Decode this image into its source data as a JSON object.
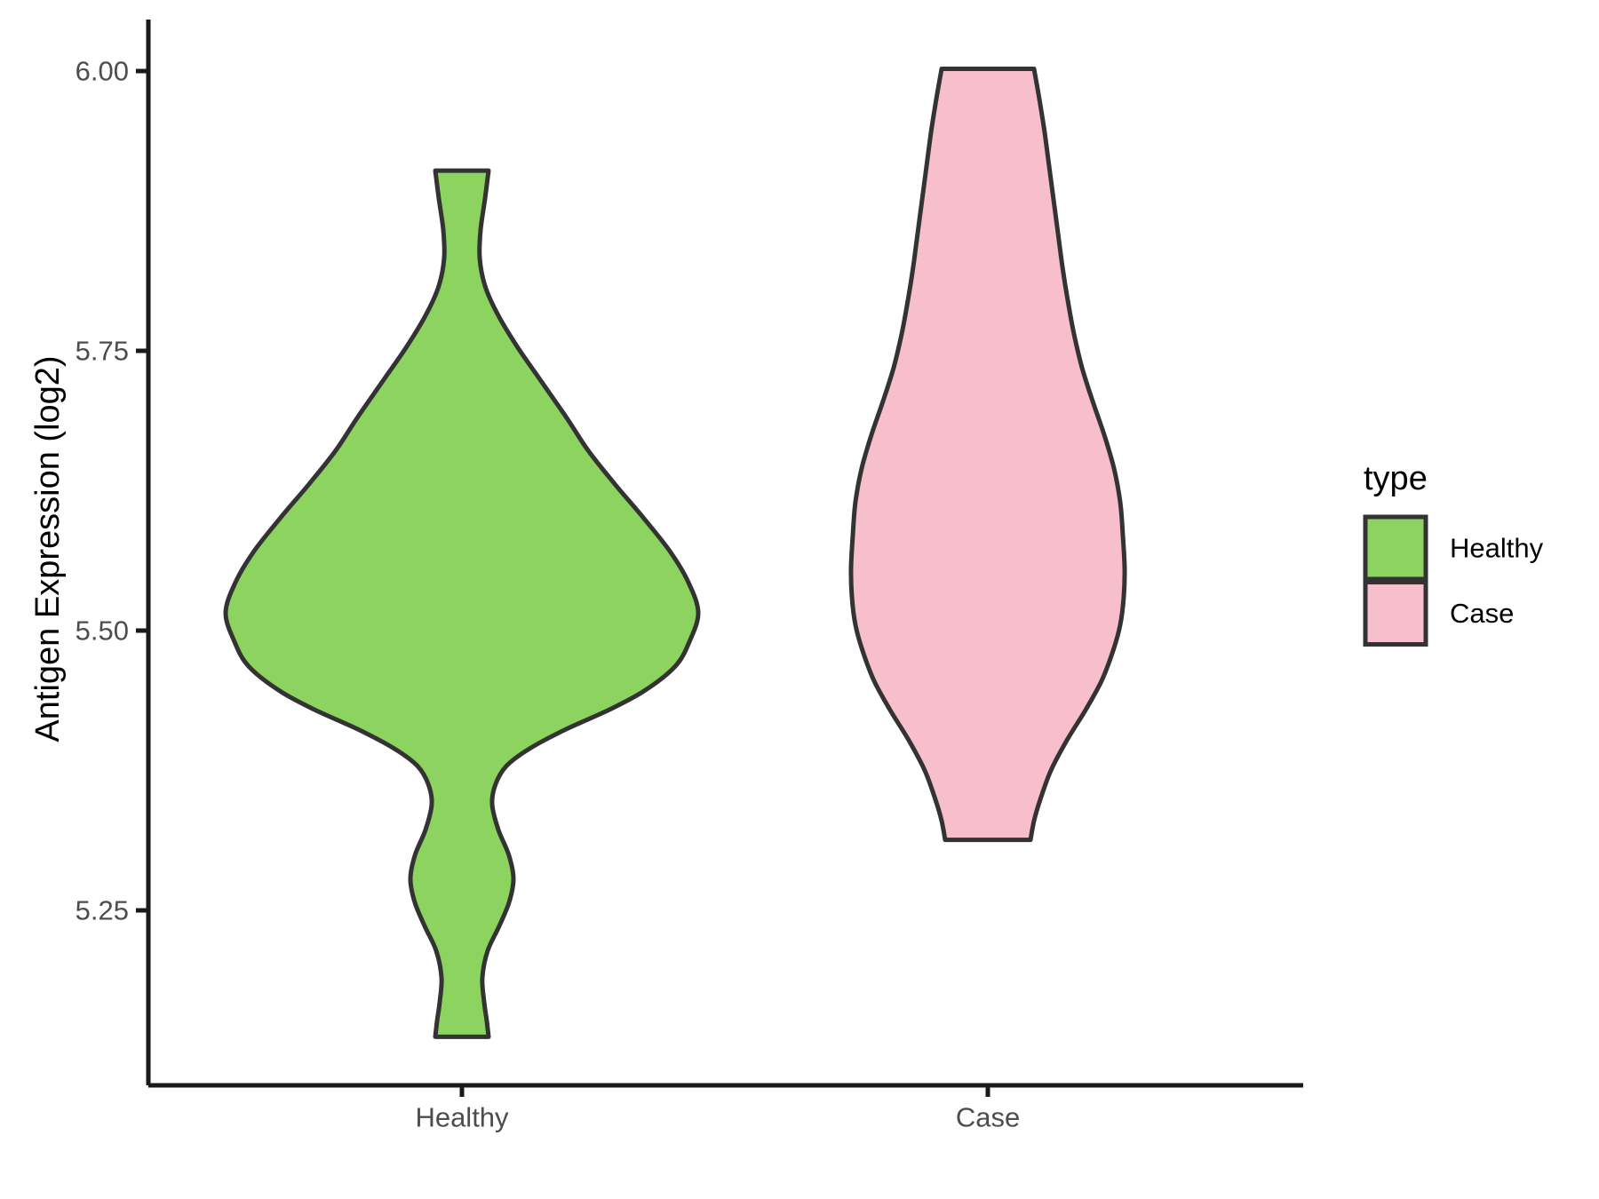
{
  "figure": {
    "background": "#ffffff"
  },
  "chart_data": {
    "type": "violin",
    "y_axis": {
      "title": "Antigen Expression (log2)",
      "ticks": [
        {
          "value": 6.0,
          "label": "6.00"
        },
        {
          "value": 5.75,
          "label": "5.75"
        },
        {
          "value": 5.5,
          "label": "5.50"
        },
        {
          "value": 5.25,
          "label": "5.25"
        }
      ],
      "range": [
        5.094,
        6.046
      ]
    },
    "x_axis": {
      "categories": [
        "Healthy",
        "Case"
      ]
    },
    "legend": {
      "title": "type",
      "entries": [
        {
          "label": "Healthy",
          "color": "#8dd35f"
        },
        {
          "label": "Case",
          "color": "#f7bfcb"
        }
      ]
    },
    "style": {
      "outline_color": "#333333",
      "axis_line_color": "#1a1a1a",
      "tick_text_color": "#4d4d4d",
      "title_text_color": "#000000",
      "grid": "none",
      "legend_position": "right"
    },
    "series": [
      {
        "name": "Healthy",
        "fill": "#8dd35f",
        "data_min": 5.14,
        "data_max": 5.91,
        "main_mode": 5.52,
        "secondary_mode": 5.28,
        "density_profile": [
          [
            5.911,
            30
          ],
          [
            5.886,
            26
          ],
          [
            5.858,
            21
          ],
          [
            5.833,
            20
          ],
          [
            5.808,
            26
          ],
          [
            5.783,
            40
          ],
          [
            5.754,
            62
          ],
          [
            5.722,
            90
          ],
          [
            5.69,
            118
          ],
          [
            5.661,
            142
          ],
          [
            5.631,
            172
          ],
          [
            5.601,
            204
          ],
          [
            5.571,
            234
          ],
          [
            5.543,
            255
          ],
          [
            5.516,
            266
          ],
          [
            5.49,
            256
          ],
          [
            5.468,
            240
          ],
          [
            5.446,
            205
          ],
          [
            5.429,
            165
          ],
          [
            5.411,
            115
          ],
          [
            5.394,
            75
          ],
          [
            5.379,
            50
          ],
          [
            5.363,
            38
          ],
          [
            5.345,
            34
          ],
          [
            5.322,
            41
          ],
          [
            5.299,
            53
          ],
          [
            5.278,
            58
          ],
          [
            5.257,
            53
          ],
          [
            5.236,
            42
          ],
          [
            5.214,
            29
          ],
          [
            5.19,
            23
          ],
          [
            5.168,
            25
          ],
          [
            5.151,
            28
          ],
          [
            5.137,
            30
          ]
        ]
      },
      {
        "name": "Case",
        "fill": "#f7bfcb",
        "data_min": 5.31,
        "data_max": 6.0,
        "main_mode": 5.56,
        "secondary_mode": null,
        "density_profile": [
          [
            6.002,
            52
          ],
          [
            5.975,
            58
          ],
          [
            5.945,
            64
          ],
          [
            5.915,
            69
          ],
          [
            5.885,
            74
          ],
          [
            5.855,
            79
          ],
          [
            5.825,
            84
          ],
          [
            5.795,
            90
          ],
          [
            5.765,
            97
          ],
          [
            5.735,
            106
          ],
          [
            5.705,
            118
          ],
          [
            5.675,
            131
          ],
          [
            5.645,
            142
          ],
          [
            5.615,
            149
          ],
          [
            5.585,
            152
          ],
          [
            5.556,
            154
          ],
          [
            5.53,
            153
          ],
          [
            5.505,
            149
          ],
          [
            5.482,
            141
          ],
          [
            5.455,
            128
          ],
          [
            5.429,
            110
          ],
          [
            5.402,
            89
          ],
          [
            5.375,
            71
          ],
          [
            5.349,
            59
          ],
          [
            5.33,
            52
          ],
          [
            5.313,
            48
          ]
        ]
      }
    ]
  }
}
